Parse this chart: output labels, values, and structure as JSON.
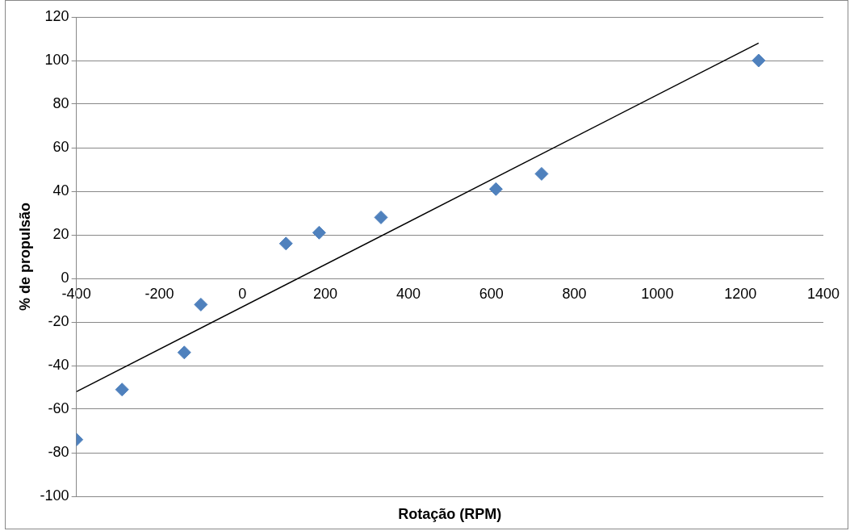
{
  "chart_data": {
    "type": "scatter",
    "xlabel": "Rotação (RPM)",
    "ylabel": "% de propulsão",
    "xlim": [
      -400,
      1400
    ],
    "xticks": [
      -400,
      -200,
      0,
      200,
      400,
      600,
      800,
      1000,
      1200,
      1400
    ],
    "ylim": [
      -100,
      120
    ],
    "yticks": [
      -100,
      -80,
      -60,
      -40,
      -20,
      0,
      20,
      40,
      60,
      80,
      100,
      120
    ],
    "grid": "y",
    "legend": false,
    "marker": "diamond",
    "series": [
      {
        "color": "#4f81bd",
        "x": [
          -400,
          -290,
          -140,
          -100,
          105,
          185,
          334,
          611,
          721,
          1244
        ],
        "values": [
          -74,
          -51,
          -34,
          -12,
          16,
          21,
          28,
          41,
          48,
          100
        ]
      },
      {
        "type": "line",
        "color": "#000000",
        "marker": "none",
        "line_style": "solid",
        "x": [
          -400,
          1244
        ],
        "values": [
          -52,
          108
        ]
      }
    ]
  }
}
